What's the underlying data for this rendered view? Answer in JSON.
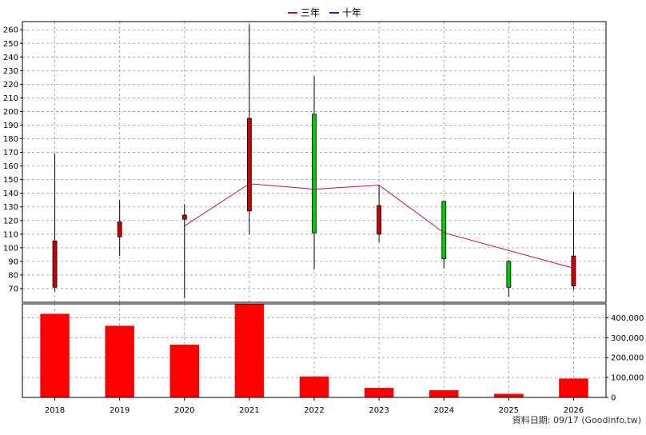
{
  "chart_data": {
    "type": "candlestick+bar",
    "legend": [
      {
        "name": "三年",
        "color": "#cc0066"
      },
      {
        "name": "十年",
        "color": "#7700aa"
      }
    ],
    "x_categories": [
      "2018",
      "2019",
      "2020",
      "2021",
      "2022",
      "2023",
      "2024",
      "2025",
      "2026"
    ],
    "price_panel": {
      "ylim": [
        60,
        266
      ],
      "y_ticks": [
        "70",
        "80",
        "90",
        "100",
        "110",
        "120",
        "130",
        "140",
        "150",
        "160",
        "170",
        "180",
        "190",
        "200",
        "210",
        "220",
        "230",
        "240",
        "250",
        "260"
      ],
      "candles": [
        {
          "year": "2018",
          "open": 105,
          "close": 71,
          "high": 169,
          "low": 68
        },
        {
          "year": "2019",
          "open": 119,
          "close": 108,
          "high": 135,
          "low": 94
        },
        {
          "year": "2020",
          "open": 124,
          "close": 121,
          "high": 132,
          "low": 63
        },
        {
          "year": "2021",
          "open": 195,
          "close": 127,
          "high": 264,
          "low": 110
        },
        {
          "year": "2022",
          "open": 111,
          "close": 198,
          "high": 226,
          "low": 84
        },
        {
          "year": "2023",
          "open": 131,
          "close": 110,
          "high": 146,
          "low": 104
        },
        {
          "year": "2024",
          "open": 92,
          "close": 134,
          "high": 134,
          "low": 85
        },
        {
          "year": "2025",
          "open": 71,
          "close": 90,
          "high": 91,
          "low": 64
        },
        {
          "year": "2026",
          "open": 94,
          "close": 72,
          "high": 141,
          "low": 69
        }
      ],
      "line_series": {
        "name": "三年",
        "color": "#cc0066",
        "points": [
          {
            "year": "2020",
            "value": 116
          },
          {
            "year": "2021",
            "value": 147
          },
          {
            "year": "2022",
            "value": 143
          },
          {
            "year": "2023",
            "value": 146
          },
          {
            "year": "2024",
            "value": 111
          },
          {
            "year": "2026",
            "value": 85
          }
        ]
      },
      "up_color": "#00cc00",
      "down_color": "#cc0000"
    },
    "volume_panel": {
      "ylim": [
        0,
        470000
      ],
      "y_ticks": [
        "0",
        "100,000",
        "200,000",
        "300,000",
        "400,000"
      ],
      "bar_color": "#ff0000",
      "values": [
        420000,
        360000,
        265000,
        475000,
        105000,
        48000,
        36000,
        18000,
        95000
      ]
    }
  },
  "footer": {
    "source": "資料日期: 09/17  (Goodinfo.tw)"
  }
}
